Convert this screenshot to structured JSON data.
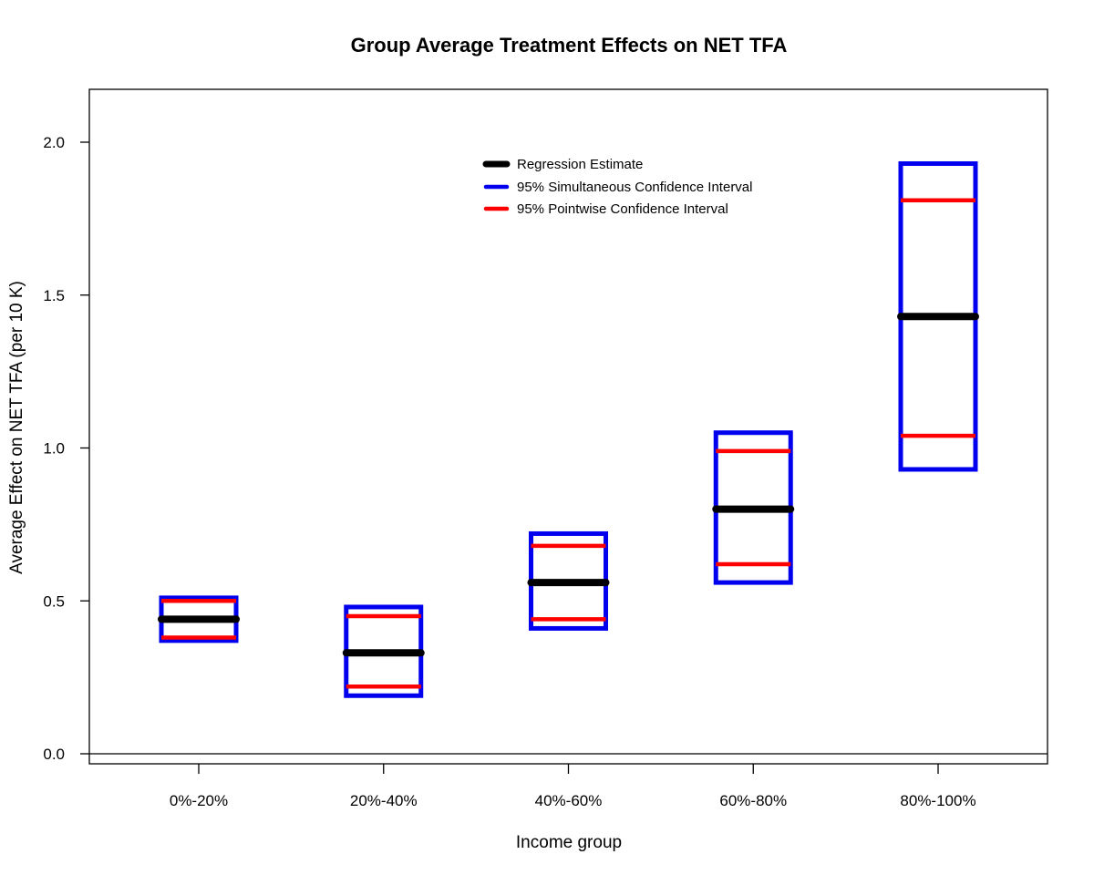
{
  "chart_data": {
    "type": "crossbar",
    "title": "Group Average Treatment Effects on NET TFA",
    "xlabel": "Income group",
    "ylabel": "Average Effect on NET TFA (per 10 K)",
    "categories": [
      "0%-20%",
      "20%-40%",
      "40%-60%",
      "60%-80%",
      "80%-100%"
    ],
    "ylim": [
      0.0,
      2.0
    ],
    "yticks": [
      "0.0",
      "0.5",
      "1.0",
      "1.5",
      "2.0"
    ],
    "grid": false,
    "legend_position": "top-center",
    "series": [
      {
        "name": "Regression Estimate",
        "color": "#000000",
        "values": [
          0.44,
          0.33,
          0.56,
          0.8,
          1.43
        ]
      },
      {
        "name": "95% Simultaneous Confidence Interval",
        "color": "#0000ee",
        "lower": [
          0.37,
          0.19,
          0.41,
          0.56,
          0.93
        ],
        "upper": [
          0.51,
          0.48,
          0.72,
          1.05,
          1.93
        ]
      },
      {
        "name": "95% Pointwise Confidence Interval",
        "color": "#ff0000",
        "lower": [
          0.38,
          0.22,
          0.44,
          0.62,
          1.04
        ],
        "upper": [
          0.5,
          0.45,
          0.68,
          0.99,
          1.81
        ]
      }
    ]
  }
}
